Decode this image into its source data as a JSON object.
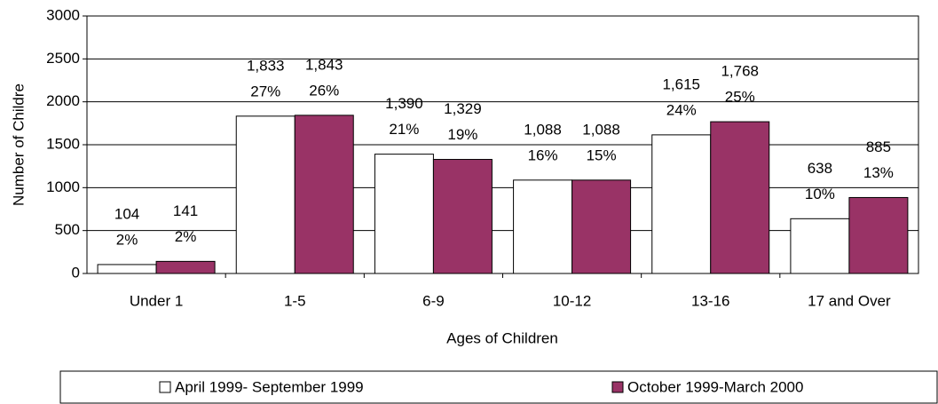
{
  "chart_data": {
    "type": "bar",
    "x_label": "Ages of Children",
    "y_label": "Number of Childre",
    "categories": [
      "Under 1",
      "1-5",
      "6-9",
      "10-12",
      "13-16",
      "17 and Over"
    ],
    "series": [
      {
        "name": "April 1999- September 1999",
        "color": "#ffffff",
        "values": [
          104,
          1833,
          1390,
          1088,
          1615,
          638
        ],
        "value_labels": [
          "104",
          "1,833",
          "1,390",
          "1,088",
          "1,615",
          "638"
        ],
        "percent_labels": [
          "2%",
          "27%",
          "21%",
          "16%",
          "24%",
          "10%"
        ]
      },
      {
        "name": "October 1999-March 2000",
        "color": "#993366",
        "values": [
          141,
          1843,
          1329,
          1088,
          1768,
          885
        ],
        "value_labels": [
          "141",
          "1,843",
          "1,329",
          "1,088",
          "1,768",
          "885"
        ],
        "percent_labels": [
          "2%",
          "26%",
          "19%",
          "15%",
          "25%",
          "13%"
        ]
      }
    ],
    "ylim": [
      0,
      3000
    ],
    "yticks": [
      0,
      500,
      1000,
      1500,
      2000,
      2500,
      3000
    ],
    "grid": true,
    "legend": "bottom"
  }
}
